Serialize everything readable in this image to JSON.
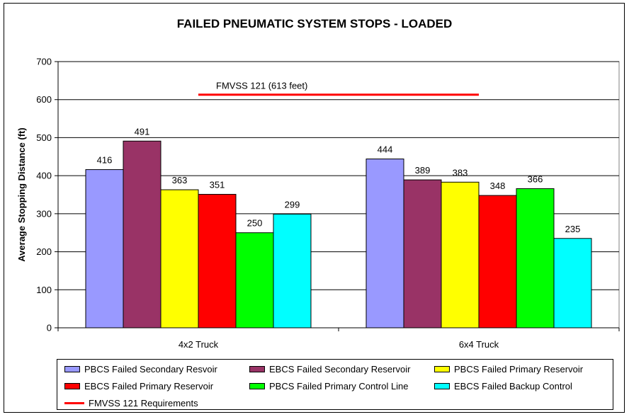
{
  "chart_data": {
    "type": "bar",
    "title": "FAILED PNEUMATIC SYSTEM STOPS - LOADED",
    "ylabel": "Average Stopping Distance (ft)",
    "xlabel": "",
    "ylim": [
      0,
      700
    ],
    "yticks": [
      0,
      100,
      200,
      300,
      400,
      500,
      600,
      700
    ],
    "grid": true,
    "legend_position": "bottom",
    "categories": [
      "4x2 Truck",
      "6x4 Truck"
    ],
    "series": [
      {
        "name": "PBCS Failed Secondary Resvoir",
        "color": "#9999FF",
        "values": [
          416,
          444
        ]
      },
      {
        "name": "EBCS Failed Secondary Reservoir",
        "color": "#993366",
        "values": [
          491,
          389
        ]
      },
      {
        "name": "PBCS Failed Primary Reservoir",
        "color": "#FFFF00",
        "values": [
          363,
          383
        ]
      },
      {
        "name": "EBCS Failed Primary Reservoir",
        "color": "#FF0000",
        "values": [
          351,
          348
        ]
      },
      {
        "name": "PBCS Failed Primary Control Line",
        "color": "#00FF00",
        "values": [
          250,
          366
        ]
      },
      {
        "name": "EBCS Failed Backup Control",
        "color": "#00FFFF",
        "values": [
          299,
          235
        ]
      }
    ],
    "reference_line": {
      "name": "FMVSS 121 Requirements",
      "label": "FMVSS 121 (613 feet)",
      "value": 613,
      "color": "#FF0000"
    }
  }
}
